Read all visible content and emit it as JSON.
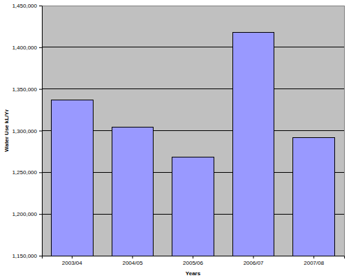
{
  "chart_data": {
    "type": "bar",
    "x_label": "Years",
    "y_label": "Water Use kL/Yr",
    "categories": [
      "2003/04",
      "2004/05",
      "2005/06",
      "2006/07",
      "2007/08"
    ],
    "values": [
      1337000,
      1304000,
      1268000,
      1418000,
      1292000
    ],
    "color": "#9999ff",
    "ylim": [
      1150000,
      1450000
    ],
    "yticks": [
      {
        "value": 1150000,
        "label": "1,150,000"
      },
      {
        "value": 1200000,
        "label": "1,200,000"
      },
      {
        "value": 1250000,
        "label": "1,250,000"
      },
      {
        "value": 1300000,
        "label": "1,300,000"
      },
      {
        "value": 1350000,
        "label": "1,350,000"
      },
      {
        "value": 1400000,
        "label": "1,400,000"
      },
      {
        "value": 1450000,
        "label": "1,450,000"
      }
    ],
    "grid": true
  }
}
